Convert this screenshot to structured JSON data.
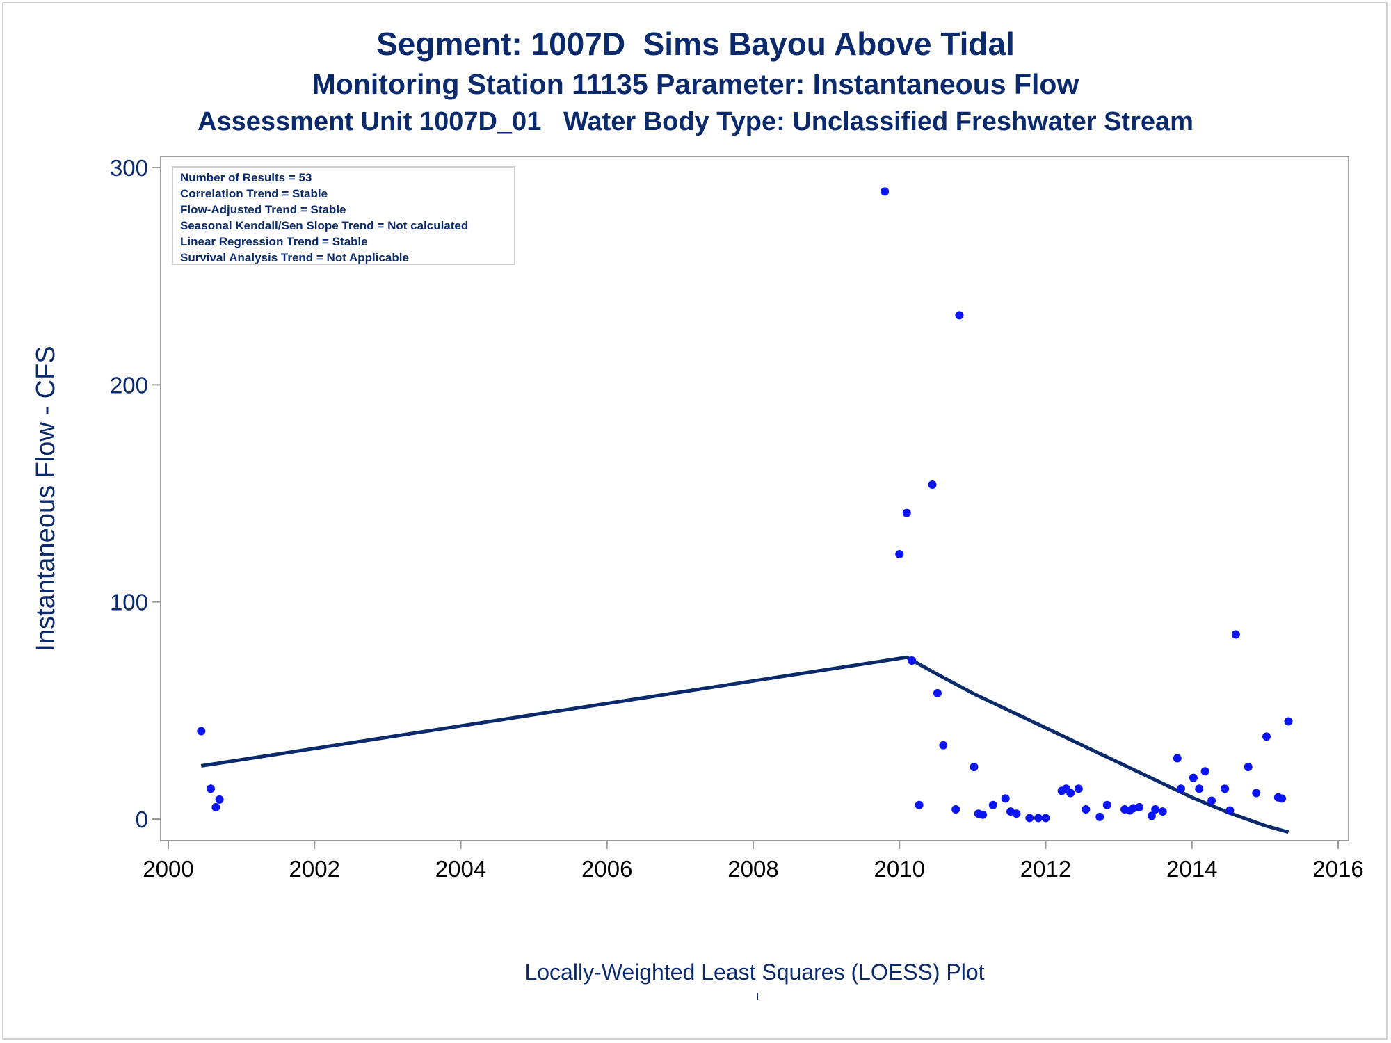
{
  "titles": {
    "line1": "Segment: 1007D  Sims Bayou Above Tidal",
    "line2": "Monitoring Station 11135 Parameter: Instantaneous Flow",
    "line3": "Assessment Unit 1007D_01   Water Body Type: Unclassified Freshwater Stream"
  },
  "stats_box": {
    "lines": [
      "Number of Results = 53",
      "Correlation Trend = Stable",
      "Flow-Adjusted Trend = Stable",
      "Seasonal Kendall/Sen Slope Trend = Not calculated",
      "Linear Regression Trend = Stable",
      "Survival Analysis Trend = Not Applicable"
    ]
  },
  "footnote": "Locally-Weighted Least Squares (LOESS) Plot",
  "colors": {
    "text": "#0b2a6b",
    "points": "#0a14f0",
    "line": "#0b2a6b",
    "frame": "#9a9a9a"
  },
  "chart_data": {
    "type": "scatter",
    "ylabel": "Instantaneous Flow - CFS",
    "xlim": [
      2000,
      2016
    ],
    "ylim": [
      -10,
      305
    ],
    "x_ticks": [
      "2000",
      "2002",
      "2004",
      "2006",
      "2008",
      "2010",
      "2012",
      "2014",
      "2016"
    ],
    "y_ticks": [
      "0",
      "100",
      "200",
      "300"
    ],
    "grid": false,
    "series": [
      {
        "kind": "points",
        "x": [
          2000.45,
          2000.58,
          2000.65,
          2000.7,
          2009.8,
          2010.0,
          2010.1,
          2010.17,
          2010.27,
          2010.45,
          2010.52,
          2010.6,
          2010.77,
          2010.82,
          2011.02,
          2011.08,
          2011.14,
          2011.28,
          2011.45,
          2011.52,
          2011.6,
          2011.78,
          2011.9,
          2012.0,
          2012.22,
          2012.28,
          2012.34,
          2012.45,
          2012.55,
          2012.74,
          2012.84,
          2013.08,
          2013.15,
          2013.2,
          2013.28,
          2013.45,
          2013.5,
          2013.6,
          2013.8,
          2013.85,
          2014.02,
          2014.1,
          2014.18,
          2014.27,
          2014.45,
          2014.52,
          2014.6,
          2014.77,
          2014.88,
          2015.02,
          2015.18,
          2015.23,
          2015.32
        ],
        "y": [
          40.5,
          14,
          5.5,
          9,
          289,
          122,
          141,
          73,
          6.5,
          154,
          58,
          34,
          4.5,
          232,
          24,
          2.5,
          2,
          6.5,
          9.5,
          3.5,
          2.5,
          0.5,
          0.5,
          0.5,
          13,
          14,
          12,
          14,
          4.5,
          1,
          6.5,
          4.5,
          4,
          5,
          5.5,
          1.5,
          4.5,
          3.5,
          28,
          14,
          19,
          14,
          22,
          8.5,
          14,
          4,
          85,
          24,
          12,
          38,
          10,
          9.5,
          45
        ]
      },
      {
        "kind": "loess-line",
        "x": [
          2000.45,
          2010.1,
          2010.5,
          2011.0,
          2011.5,
          2012.0,
          2012.5,
          2013.0,
          2013.5,
          2014.0,
          2014.5,
          2015.0,
          2015.32
        ],
        "y": [
          24.5,
          74.5,
          67,
          58,
          50,
          42,
          34,
          26,
          18,
          10,
          3,
          -3,
          -6
        ]
      }
    ]
  }
}
